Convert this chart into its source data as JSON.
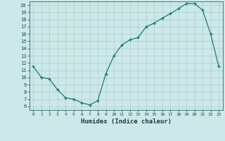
{
  "x": [
    0,
    1,
    2,
    3,
    4,
    5,
    6,
    7,
    8,
    9,
    10,
    11,
    12,
    13,
    14,
    15,
    16,
    17,
    18,
    19,
    20,
    21,
    22,
    23
  ],
  "y": [
    11.5,
    10.0,
    9.8,
    8.3,
    7.2,
    7.0,
    6.5,
    6.2,
    6.8,
    10.5,
    13.0,
    14.5,
    15.2,
    15.5,
    17.0,
    17.5,
    18.2,
    18.8,
    19.5,
    20.2,
    20.2,
    19.3,
    16.0,
    11.5
  ],
  "xlabel": "Humidex (Indice chaleur)",
  "xlim": [
    -0.5,
    23.5
  ],
  "ylim": [
    5.5,
    20.5
  ],
  "yticks": [
    6,
    7,
    8,
    9,
    10,
    11,
    12,
    13,
    14,
    15,
    16,
    17,
    18,
    19,
    20
  ],
  "xticks": [
    0,
    1,
    2,
    3,
    4,
    5,
    6,
    7,
    8,
    9,
    10,
    11,
    12,
    13,
    14,
    15,
    16,
    17,
    18,
    19,
    20,
    21,
    22,
    23
  ],
  "line_color": "#1a7a6e",
  "marker": "+",
  "bg_color": "#cde8e8",
  "grid_color": "#aacece",
  "tick_color": "#1a4a4a",
  "xlabel_color": "#1a3a3a"
}
